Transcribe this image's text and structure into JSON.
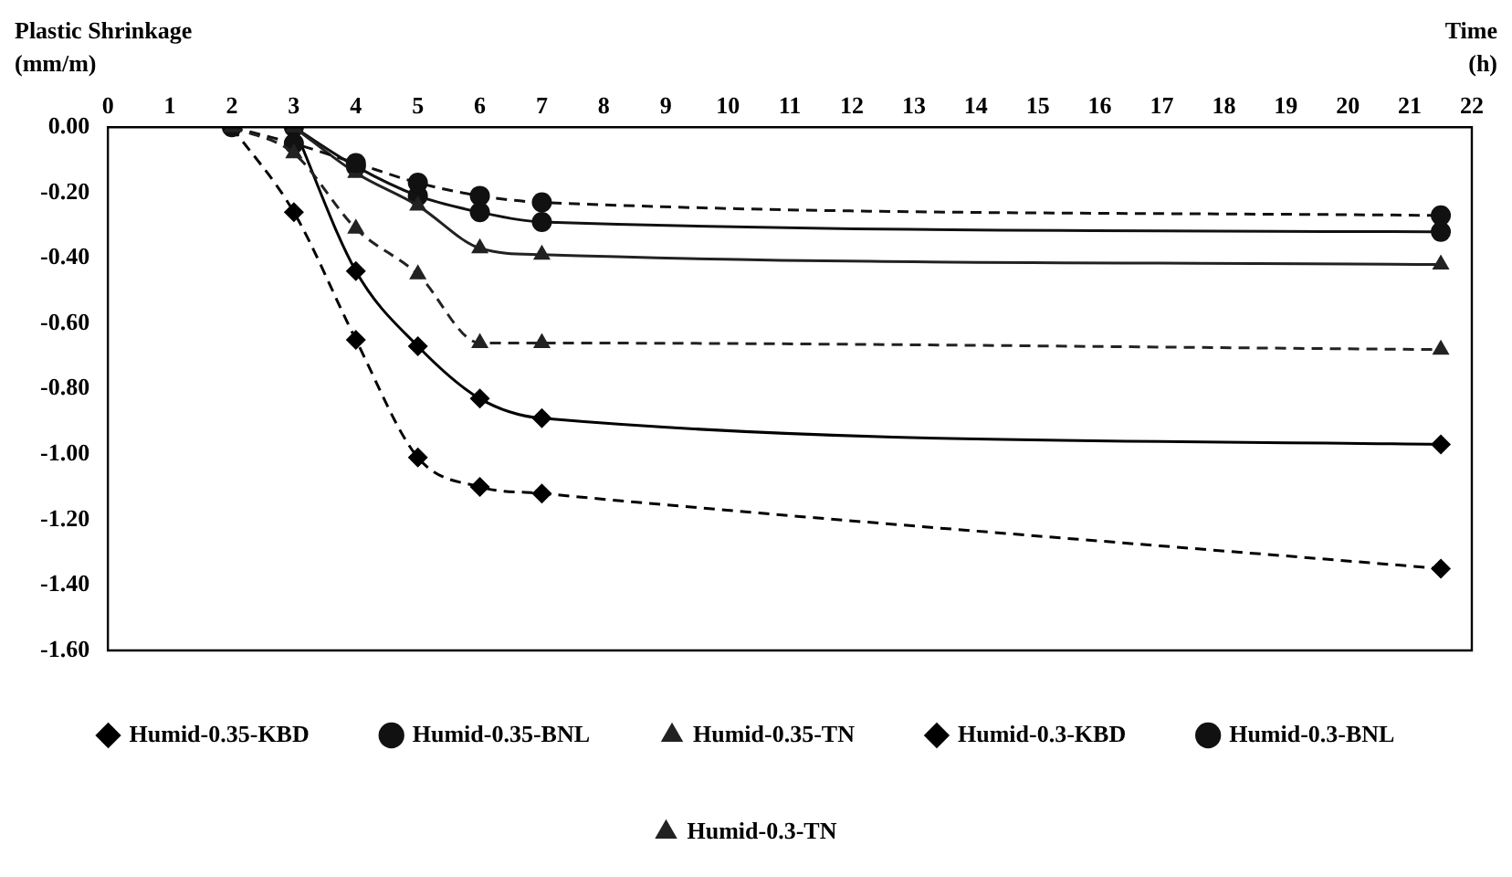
{
  "chart_data": {
    "type": "line",
    "xlabel": "Time (h)",
    "ylabel": "Plastic Shrinkage (mm/m)",
    "xlim": [
      0,
      22
    ],
    "xticks": [
      0,
      1,
      2,
      3,
      4,
      5,
      6,
      7,
      8,
      9,
      10,
      11,
      12,
      13,
      14,
      15,
      16,
      17,
      18,
      19,
      20,
      21,
      22
    ],
    "ylim": [
      -1.6,
      0
    ],
    "yticks": [
      {
        "value": 0,
        "label": "0.00"
      },
      {
        "value": -0.2,
        "label": "-0.20"
      },
      {
        "value": -0.4,
        "label": "-0.40"
      },
      {
        "value": -0.6,
        "label": "-0.60"
      },
      {
        "value": -0.8,
        "label": "-0.80"
      },
      {
        "value": -1.0,
        "label": "-1.00"
      },
      {
        "value": -1.2,
        "label": "-1.20"
      },
      {
        "value": -1.4,
        "label": "-1.40"
      },
      {
        "value": -1.6,
        "label": "-1.60"
      }
    ],
    "grid": false,
    "legend": "bottom",
    "series": [
      {
        "name": "Humid-0.35-KBD",
        "color": "#000000",
        "marker": "diamond",
        "line_style": "solid",
        "x": [
          3,
          4,
          5,
          6,
          7,
          21.5
        ],
        "values": [
          0,
          -0.44,
          -0.67,
          -0.83,
          -0.89,
          -0.97
        ]
      },
      {
        "name": "Humid-0.35-BNL",
        "color": "#111111",
        "marker": "circle",
        "line_style": "solid",
        "x": [
          3,
          4,
          5,
          6,
          7,
          21.5
        ],
        "values": [
          0,
          -0.12,
          -0.21,
          -0.26,
          -0.29,
          -0.32
        ]
      },
      {
        "name": "Humid-0.35-TN",
        "color": "#222222",
        "marker": "triangle",
        "line_style": "solid",
        "x": [
          3,
          4,
          5,
          6,
          7,
          21.5
        ],
        "values": [
          0,
          -0.14,
          -0.24,
          -0.37,
          -0.39,
          -0.42
        ]
      },
      {
        "name": "Humid-0.3-KBD",
        "color": "#000000",
        "marker": "diamond",
        "line_style": "dashed",
        "x": [
          2,
          3,
          4,
          5,
          6,
          7,
          21.5
        ],
        "values": [
          0,
          -0.26,
          -0.65,
          -1.01,
          -1.1,
          -1.12,
          -1.35
        ]
      },
      {
        "name": "Humid-0.3-BNL",
        "color": "#111111",
        "marker": "circle",
        "line_style": "dashed",
        "x": [
          2,
          3,
          4,
          5,
          6,
          7,
          21.5
        ],
        "values": [
          0,
          -0.05,
          -0.11,
          -0.17,
          -0.21,
          -0.23,
          -0.27
        ]
      },
      {
        "name": "Humid-0.3-TN",
        "color": "#222222",
        "marker": "triangle",
        "line_style": "dashed",
        "x": [
          2,
          3,
          4,
          5,
          6,
          7,
          21.5
        ],
        "values": [
          0,
          -0.08,
          -0.31,
          -0.45,
          -0.66,
          -0.66,
          -0.68
        ]
      }
    ]
  }
}
